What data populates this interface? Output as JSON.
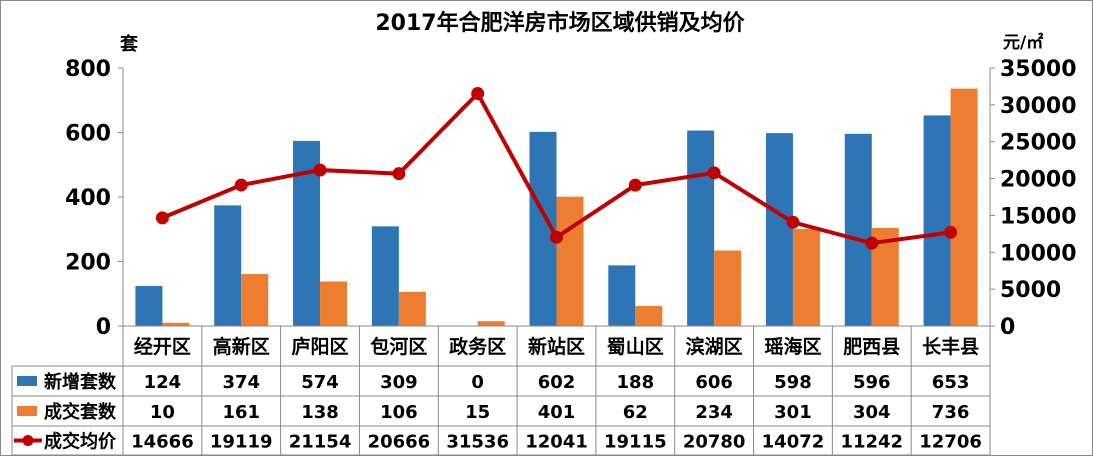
{
  "chart_data": {
    "type": "bar",
    "title": "2017年合肥洋房市场区域供销及均价",
    "left_unit": "套",
    "right_unit": "元/㎡",
    "categories": [
      "经开区",
      "高新区",
      "庐阳区",
      "包河区",
      "政务区",
      "新站区",
      "蜀山区",
      "滨湖区",
      "瑶海区",
      "肥西县",
      "长丰县"
    ],
    "ylim_left": [
      0,
      800
    ],
    "ylim_right": [
      0,
      35000
    ],
    "left_ticks": [
      "0",
      "200",
      "400",
      "600",
      "800"
    ],
    "right_ticks": [
      "0",
      "5000",
      "10000",
      "15000",
      "20000",
      "25000",
      "30000",
      "35000"
    ],
    "grid": false,
    "legend_placement": "data-table",
    "series": [
      {
        "name": "新增套数",
        "type": "bar",
        "axis": "left",
        "color": "#2E75B6",
        "values": [
          124,
          374,
          574,
          309,
          0,
          602,
          188,
          606,
          598,
          596,
          653
        ]
      },
      {
        "name": "成交套数",
        "type": "bar",
        "axis": "left",
        "color": "#ED7D31",
        "values": [
          10,
          161,
          138,
          106,
          15,
          401,
          62,
          234,
          301,
          304,
          736
        ]
      },
      {
        "name": "成交均价",
        "type": "line",
        "axis": "right",
        "color": "#C00000",
        "values": [
          14666,
          19119,
          21154,
          20666,
          31536,
          12041,
          19115,
          20780,
          14072,
          11242,
          12706
        ]
      }
    ]
  }
}
